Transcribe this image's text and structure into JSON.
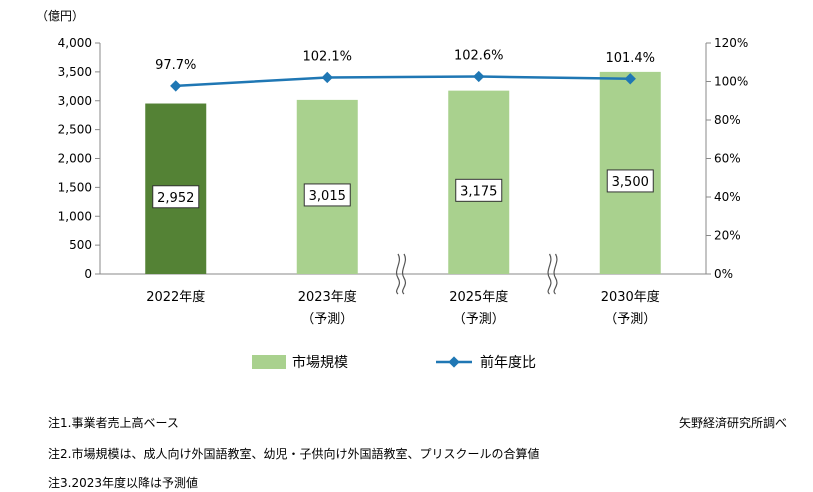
{
  "chart_data": {
    "type": "bar",
    "y_unit_label": "（億円）",
    "categories": [
      [
        "2022年度",
        ""
      ],
      [
        "2023年度",
        "（予測）"
      ],
      [
        "2025年度",
        "（予測）"
      ],
      [
        "2030年度",
        "（予測）"
      ]
    ],
    "series": [
      {
        "name": "市場規模",
        "kind": "bar",
        "axis": "left",
        "values": [
          2952,
          3015,
          3175,
          3500
        ],
        "labels": [
          "2,952",
          "3,015",
          "3,175",
          "3,500"
        ],
        "colors": [
          "#548235",
          "#a9d18e",
          "#a9d18e",
          "#a9d18e"
        ]
      },
      {
        "name": "前年度比",
        "kind": "line",
        "axis": "right",
        "values": [
          97.7,
          102.1,
          102.6,
          101.4
        ],
        "labels": [
          "97.7%",
          "102.1%",
          "102.6%",
          "101.4%"
        ],
        "color": "#1f77b4"
      }
    ],
    "y_left": {
      "min": 0,
      "max": 4000,
      "ticks": [
        "0",
        "500",
        "1,000",
        "1,500",
        "2,000",
        "2,500",
        "3,000",
        "3,500",
        "4,000"
      ]
    },
    "y_right": {
      "min": 0,
      "max": 120,
      "ticks": [
        "0%",
        "20%",
        "40%",
        "60%",
        "80%",
        "100%",
        "120%"
      ]
    },
    "axis_breaks": "between 2023 and 2025, between 2025 and 2030",
    "legend": "bottom-center",
    "grid": false
  },
  "notes": {
    "note1": "注1.事業者売上高ベース",
    "note2": "注2.市場規模は、成人向け外国語教室、幼児・子供向け外国語教室、プリスクールの合算値",
    "note3": "注3.2023年度以降は予測値",
    "source": "矢野経済研究所調べ"
  }
}
